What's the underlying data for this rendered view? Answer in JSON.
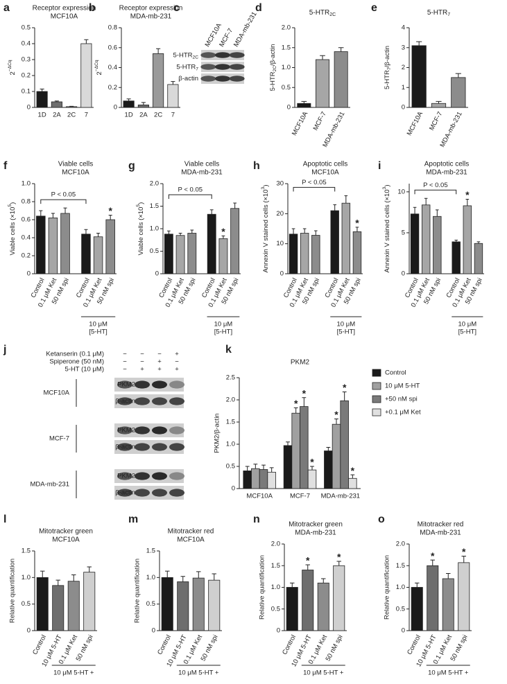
{
  "chart_data": [
    {
      "type": "bar",
      "label": "a",
      "title": [
        "Receptor expression",
        "MCF10A"
      ],
      "ylabel": [
        "2",
        {
          "sup": "−ΔCq"
        }
      ],
      "categories": [
        "1D",
        "2A",
        "2C",
        "7"
      ],
      "values": [
        0.1,
        0.035,
        0.005,
        0.4
      ],
      "errors": [
        0.015,
        0.005,
        0.002,
        0.025
      ],
      "colors": [
        "#1a1a1a",
        "#6e6e6e",
        "#9a9a9a",
        "#d9d9d9"
      ],
      "ylim": [
        0,
        0.5
      ],
      "yticks": [
        0,
        0.1,
        0.2,
        0.3,
        0.4,
        0.5
      ]
    },
    {
      "type": "bar",
      "label": "b",
      "title": [
        "Receptor expression",
        "MDA-mb-231"
      ],
      "ylabel": [
        "2",
        {
          "sup": "−ΔCq"
        }
      ],
      "categories": [
        "1D",
        "2A",
        "2C",
        "7"
      ],
      "values": [
        0.065,
        0.025,
        0.54,
        0.23
      ],
      "errors": [
        0.02,
        0.025,
        0.05,
        0.03
      ],
      "colors": [
        "#1a1a1a",
        "#6e6e6e",
        "#9a9a9a",
        "#d9d9d9"
      ],
      "ylim": [
        0,
        0.8
      ],
      "yticks": [
        0,
        0.2,
        0.4,
        0.6,
        0.8
      ]
    },
    {
      "type": "blot",
      "label": "c",
      "columns": [
        "MCF10A",
        "MCF-7",
        "MDA-mb-231"
      ],
      "rows": [
        [
          "5-HTR",
          {
            "sub": "2C"
          }
        ],
        [
          "5-HTR",
          {
            "sub": "7"
          }
        ],
        "β-actin"
      ]
    },
    {
      "type": "bar",
      "label": "d",
      "title": [
        [
          "5-HTR",
          {
            "sub": "2C"
          }
        ]
      ],
      "ylabel": [
        "5-HTR",
        {
          "sub": "2C"
        },
        "/β-actin"
      ],
      "categories": [
        "MCF10A",
        "MCF-7",
        "MDA-mb-231"
      ],
      "values": [
        0.1,
        1.2,
        1.4
      ],
      "errors": [
        0.05,
        0.1,
        0.1
      ],
      "colors": [
        "#1a1a1a",
        "#a6a6a6",
        "#8c8c8c"
      ],
      "ylim": [
        0,
        2
      ],
      "yticks": [
        0,
        0.5,
        {
          "value": 1,
          "label": "1.0"
        },
        1.5,
        {
          "value": 2,
          "label": "2.0"
        }
      ]
    },
    {
      "type": "bar",
      "label": "e",
      "title": [
        [
          "5-HTR",
          {
            "sub": "7"
          }
        ]
      ],
      "ylabel": [
        "5-HTR",
        {
          "sub": "7"
        },
        "/β-actin"
      ],
      "categories": [
        "MCF10A",
        "MCF-7",
        "MDA-mb-231"
      ],
      "values": [
        3.1,
        0.2,
        1.5
      ],
      "errors": [
        0.2,
        0.1,
        0.2
      ],
      "colors": [
        "#1a1a1a",
        "#a6a6a6",
        "#8c8c8c"
      ],
      "ylim": [
        0,
        4
      ],
      "yticks": [
        0,
        1,
        2,
        3,
        4
      ]
    },
    {
      "type": "bar",
      "label": "f",
      "title": [
        "Viable cells",
        "MCF10A"
      ],
      "ylabel": [
        "Viable cells (×10",
        {
          "sup": "5"
        },
        ")"
      ],
      "categories": [
        "Control",
        "0.1 μM Ket",
        "50 nM spi",
        "Control",
        "0.1 μM Ket",
        "50 nM spi"
      ],
      "values": [
        0.64,
        0.62,
        0.67,
        0.44,
        0.41,
        0.6
      ],
      "errors": [
        0.06,
        0.05,
        0.06,
        0.05,
        0.04,
        0.05
      ],
      "colors": [
        "#1a1a1a",
        "#a6a6a6",
        "#8c8c8c",
        "#1a1a1a",
        "#a6a6a6",
        "#8c8c8c"
      ],
      "significance": [
        null,
        null,
        null,
        null,
        null,
        "*"
      ],
      "annotation": "P < 0.05",
      "group_label": [
        "10 μM",
        "[5-HT]"
      ],
      "ylim": [
        0,
        1
      ],
      "yticks": [
        0,
        0.2,
        0.4,
        0.6,
        0.8,
        {
          "value": 1,
          "label": "1.0"
        }
      ]
    },
    {
      "type": "bar",
      "label": "g",
      "title": [
        "Viable cells",
        "MDA-mb-231"
      ],
      "ylabel": [
        "Viable cells (×10",
        {
          "sup": "5"
        },
        ")"
      ],
      "categories": [
        "Control",
        "0.1 μM Ket",
        "50 nM spi",
        "Control",
        "0.1 μM Ket",
        "50 nM spi"
      ],
      "values": [
        0.88,
        0.85,
        0.9,
        1.32,
        0.78,
        1.45
      ],
      "errors": [
        0.07,
        0.05,
        0.07,
        0.1,
        0.06,
        0.12
      ],
      "colors": [
        "#1a1a1a",
        "#a6a6a6",
        "#8c8c8c",
        "#1a1a1a",
        "#a6a6a6",
        "#8c8c8c"
      ],
      "significance": [
        null,
        null,
        null,
        null,
        "*",
        null
      ],
      "annotation": "P < 0.05",
      "group_label": [
        "10 μM",
        "[5-HT]"
      ],
      "ylim": [
        0,
        2
      ],
      "yticks": [
        0,
        0.5,
        {
          "value": 1,
          "label": "1.0"
        },
        1.5,
        {
          "value": 2,
          "label": "2.0"
        }
      ]
    },
    {
      "type": "bar",
      "label": "h",
      "title": [
        "Apoptotic cells",
        "MCF10A"
      ],
      "ylabel": [
        "Annexin V stained cells (×10",
        {
          "sup": "3"
        },
        ")"
      ],
      "categories": [
        "Control",
        "0.1 μM Ket",
        "50 nM spi",
        "Control",
        "0.1 μM Ket",
        "50 nM spi"
      ],
      "values": [
        13.2,
        13.5,
        12.8,
        21,
        23.5,
        14
      ],
      "errors": [
        1.8,
        1.5,
        1.5,
        2,
        2.5,
        1.5
      ],
      "colors": [
        "#1a1a1a",
        "#a6a6a6",
        "#8c8c8c",
        "#1a1a1a",
        "#a6a6a6",
        "#8c8c8c"
      ],
      "significance": [
        null,
        null,
        null,
        null,
        null,
        "*"
      ],
      "annotation": "P < 0.05",
      "group_label": [
        "10 μM",
        "[5-HT]"
      ],
      "ylim": [
        0,
        30
      ],
      "yticks": [
        0,
        10,
        20,
        30
      ]
    },
    {
      "type": "bar",
      "label": "i",
      "title": [
        "Apoptotic cells",
        "MDA-mb-231"
      ],
      "ylabel": [
        "Annexin V stained cells (×10",
        {
          "sup": "3"
        },
        ")"
      ],
      "categories": [
        "Control",
        "0.1 μM Ket",
        "50 nM spi",
        "Control",
        "0.1 μM Ket",
        "50 nM spi"
      ],
      "values": [
        7.3,
        8.4,
        7,
        3.9,
        8.3,
        3.7
      ],
      "errors": [
        0.8,
        0.8,
        0.8,
        0.2,
        0.8,
        0.2
      ],
      "colors": [
        "#1a1a1a",
        "#a6a6a6",
        "#8c8c8c",
        "#1a1a1a",
        "#a6a6a6",
        "#8c8c8c"
      ],
      "significance": [
        null,
        null,
        null,
        null,
        "*",
        null
      ],
      "annotation": "P < 0.05",
      "group_label": [
        "10 μM",
        "[5-HT]"
      ],
      "ylim": [
        0,
        11
      ],
      "yticks": [
        0,
        5,
        10
      ]
    },
    {
      "type": "blot",
      "label": "j",
      "treatments": [
        {
          "name": "Ketanserin (0.1 μM)",
          "signs": [
            "−",
            "−",
            "−",
            "+"
          ]
        },
        {
          "name": "Spiperone (50 nM)",
          "signs": [
            "−",
            "−",
            "+",
            "−"
          ]
        },
        {
          "name": "5-HT (10 μM)",
          "signs": [
            "−",
            "+",
            "+",
            "+"
          ]
        }
      ],
      "groups": [
        {
          "name": "MCF10A",
          "bands": [
            "PKM2",
            "β-actin"
          ]
        },
        {
          "name": "MCF-7",
          "bands": [
            "PKM2",
            "β-actin"
          ]
        },
        {
          "name": "MDA-mb-231",
          "bands": [
            "PKM2",
            "β-actin"
          ]
        }
      ]
    },
    {
      "type": "bar",
      "label": "k",
      "title": [
        "PKM2"
      ],
      "ylabel": "PKM2/β-actin",
      "categories": [
        "MCF10A",
        "MCF-7",
        "MDA-mb-231"
      ],
      "series": [
        {
          "name": "Control",
          "color": "#1a1a1a",
          "values": [
            0.4,
            0.97,
            0.85
          ],
          "errors": [
            0.1,
            0.08,
            0.08
          ],
          "significance": [
            null,
            null,
            null
          ]
        },
        {
          "name": "10 μM 5-HT",
          "color": "#a0a0a0",
          "values": [
            0.45,
            1.7,
            1.45
          ],
          "errors": [
            0.1,
            0.12,
            0.12
          ],
          "significance": [
            null,
            "*",
            "*"
          ]
        },
        {
          "name": "+50 nM spi",
          "color": "#7a7a7a",
          "values": [
            0.43,
            1.85,
            1.98
          ],
          "errors": [
            0.1,
            0.2,
            0.2
          ],
          "significance": [
            null,
            "*",
            "*"
          ]
        },
        {
          "name": "+0.1 μM Ket",
          "color": "#e0e0e0",
          "values": [
            0.37,
            0.42,
            0.23
          ],
          "errors": [
            0.1,
            0.08,
            0.08
          ],
          "significance": [
            null,
            "*",
            "*"
          ]
        }
      ],
      "ylim": [
        0,
        2.5
      ],
      "yticks": [
        0,
        0.5,
        {
          "value": 1,
          "label": "1.0"
        },
        1.5,
        {
          "value": 2,
          "label": "2.0"
        },
        2.5
      ]
    },
    {
      "type": "bar",
      "label": "l",
      "title": [
        "Mitotracker green",
        "MCF10A"
      ],
      "ylabel": "Relative quantification",
      "categories": [
        "Control",
        "10 μM 5-HT",
        "0.1 μM Ket",
        "50 nM spi"
      ],
      "values": [
        1.0,
        0.85,
        0.93,
        1.1
      ],
      "errors": [
        0.12,
        0.1,
        0.12,
        0.1
      ],
      "colors": [
        "#1a1a1a",
        "#6e6e6e",
        "#8c8c8c",
        "#cfcfcf"
      ],
      "group_label": [
        "10 μM 5-HT +"
      ],
      "ylim": [
        0,
        1.5
      ],
      "yticks": [
        0,
        0.5,
        {
          "value": 1,
          "label": "1.0"
        },
        1.5
      ]
    },
    {
      "type": "bar",
      "label": "m",
      "title": [
        "Mitotracker red",
        "MCF10A"
      ],
      "ylabel": "Relative quantification",
      "categories": [
        "Control",
        "10 μM 5-HT",
        "0.1 μM Ket",
        "50 nM spi"
      ],
      "values": [
        1.0,
        0.92,
        0.99,
        0.95
      ],
      "errors": [
        0.12,
        0.1,
        0.12,
        0.12
      ],
      "colors": [
        "#1a1a1a",
        "#6e6e6e",
        "#8c8c8c",
        "#cfcfcf"
      ],
      "group_label": [
        "10 μM 5-HT +"
      ],
      "ylim": [
        0,
        1.5
      ],
      "yticks": [
        0,
        0.5,
        {
          "value": 1,
          "label": "1.0"
        },
        1.5
      ]
    },
    {
      "type": "bar",
      "label": "n",
      "title": [
        "Mitotracker green",
        "MDA-mb-231"
      ],
      "ylabel": "Relative quantification",
      "categories": [
        "Control",
        "10 μM 5-HT",
        "0.1 μM Ket",
        "50 nM spi"
      ],
      "values": [
        1.0,
        1.4,
        1.1,
        1.5
      ],
      "errors": [
        0.1,
        0.12,
        0.1,
        0.1
      ],
      "colors": [
        "#1a1a1a",
        "#6e6e6e",
        "#8c8c8c",
        "#cfcfcf"
      ],
      "significance": [
        null,
        "*",
        null,
        "*"
      ],
      "group_label": [
        "10 μM 5-HT +"
      ],
      "ylim": [
        0,
        2
      ],
      "yticks": [
        0,
        0.5,
        {
          "value": 1,
          "label": "1.0"
        },
        1.5,
        {
          "value": 2,
          "label": "2.0"
        }
      ]
    },
    {
      "type": "bar",
      "label": "o",
      "title": [
        "Mitotracker red",
        "MDA-mb-231"
      ],
      "ylabel": "Relative quantification",
      "categories": [
        "Control",
        "10 μM 5-HT",
        "0.1 μM Ket",
        "50 nM spi"
      ],
      "values": [
        1.0,
        1.5,
        1.2,
        1.57
      ],
      "errors": [
        0.1,
        0.13,
        0.12,
        0.15
      ],
      "colors": [
        "#1a1a1a",
        "#6e6e6e",
        "#8c8c8c",
        "#cfcfcf"
      ],
      "significance": [
        null,
        "*",
        null,
        "*"
      ],
      "group_label": [
        "10 μM 5-HT +"
      ],
      "ylim": [
        0,
        2
      ],
      "yticks": [
        0,
        0.5,
        {
          "value": 1,
          "label": "1.0"
        },
        1.5,
        {
          "value": 2,
          "label": "2.0"
        }
      ]
    }
  ]
}
